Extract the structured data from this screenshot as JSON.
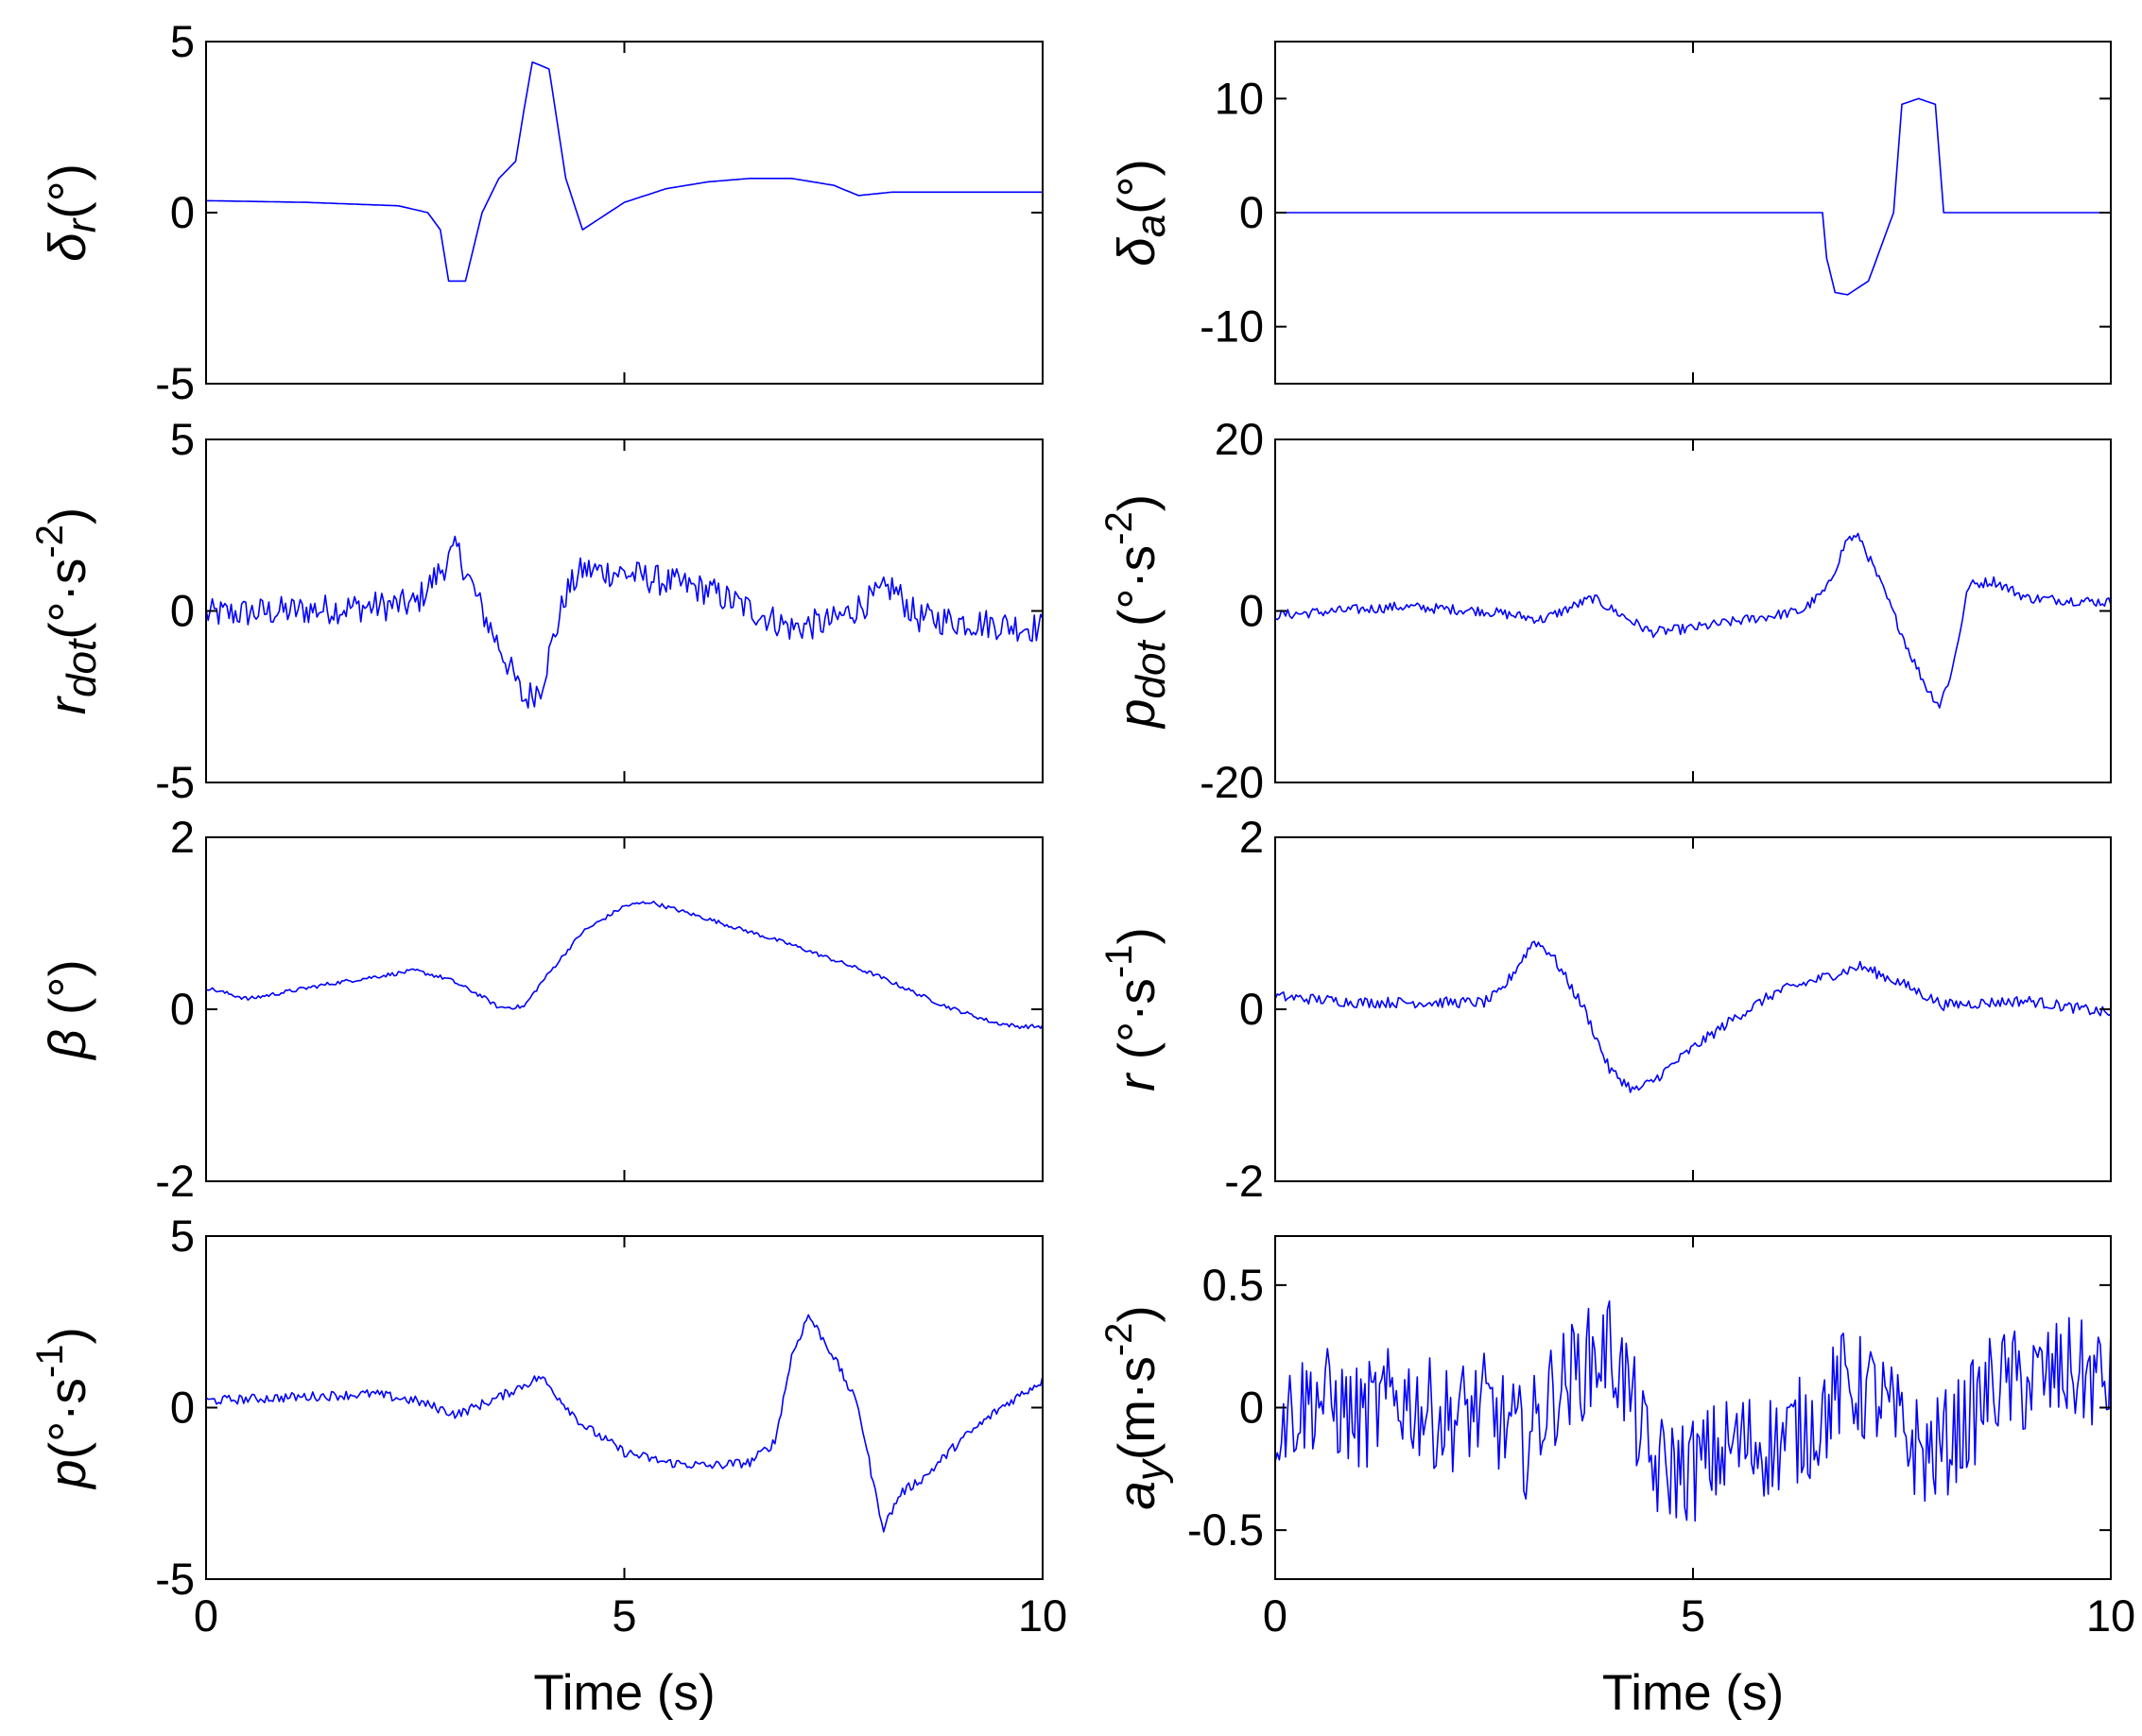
{
  "colors": {
    "line": "#0000ff",
    "axes": "#000000",
    "background": "#ffffff"
  },
  "chart_data": [
    {
      "id": "rudder",
      "type": "line",
      "ylabel": {
        "sym": "δ",
        "sub": "r",
        "unit": "(°)"
      },
      "xlabel": "",
      "xlim": [
        0,
        10
      ],
      "ylim": [
        -5,
        5
      ],
      "xticks": [
        "0",
        "5",
        "10"
      ],
      "yticks": [
        "-5",
        "0",
        "5"
      ],
      "x": [
        0,
        1.2,
        2.3,
        2.65,
        2.8,
        2.9,
        3.1,
        3.3,
        3.5,
        3.7,
        3.8,
        3.9,
        4.1,
        4.3,
        4.5,
        5.0,
        5.5,
        6.0,
        6.5,
        7.0,
        7.5,
        7.8,
        8.2,
        10
      ],
      "series": [
        {
          "name": "δr",
          "values": [
            0.35,
            0.3,
            0.2,
            0.0,
            -0.5,
            -2.0,
            -2.0,
            0.0,
            1.0,
            1.5,
            3.0,
            4.4,
            4.2,
            1.0,
            -0.5,
            0.3,
            0.7,
            0.9,
            1.0,
            1.0,
            0.8,
            0.5,
            0.6,
            0.6
          ]
        }
      ]
    },
    {
      "id": "aileron",
      "type": "line",
      "ylabel": {
        "sym": "δ",
        "sub": "a",
        "unit": "(°)"
      },
      "xlabel": "",
      "xlim": [
        0,
        10
      ],
      "ylim": [
        -15,
        15
      ],
      "xticks": [
        "0",
        "5",
        "10"
      ],
      "yticks": [
        "-10",
        "0",
        "10"
      ],
      "x": [
        0,
        6.55,
        6.6,
        6.7,
        6.85,
        7.1,
        7.3,
        7.4,
        7.5,
        7.7,
        7.9,
        8.0,
        8.05,
        10
      ],
      "series": [
        {
          "name": "δa",
          "values": [
            0,
            0,
            -4,
            -7,
            -7.2,
            -6.0,
            -2.0,
            0.0,
            9.5,
            10.0,
            9.5,
            0.0,
            0.0,
            0.0
          ]
        }
      ]
    },
    {
      "id": "yaw_accel",
      "type": "line",
      "ylabel": {
        "sym": "r",
        "sub": "dot",
        "unit": "(°·s",
        "sup": "-2",
        "tail": ")"
      },
      "xlabel": "",
      "xlim": [
        0,
        10
      ],
      "ylim": [
        -5,
        5
      ],
      "xticks": [
        "0",
        "5",
        "10"
      ],
      "yticks": [
        "-5",
        "0",
        "5"
      ],
      "x": [
        0,
        1.0,
        2.5,
        2.9,
        3.0,
        3.3,
        3.6,
        3.8,
        4.0,
        4.3,
        4.5,
        5.0,
        6.0,
        7.0,
        7.5,
        8.0,
        8.2,
        8.5,
        10
      ],
      "series": [
        {
          "name": "rdot",
          "values": [
            -0.1,
            0.0,
            0.2,
            1.5,
            1.8,
            0.0,
            -1.5,
            -2.6,
            -2.2,
            0.5,
            1.2,
            1.1,
            0.6,
            -0.5,
            -0.3,
            0.4,
            0.7,
            -0.2,
            -0.5
          ]
        }
      ]
    },
    {
      "id": "roll_accel",
      "type": "line",
      "ylabel": {
        "sym": "p",
        "sub": "dot",
        "unit": " (°·s",
        "sup": "-2",
        "tail": ")"
      },
      "xlabel": "",
      "xlim": [
        0,
        10
      ],
      "ylim": [
        -20,
        20
      ],
      "xticks": [
        "0",
        "5",
        "10"
      ],
      "yticks": [
        "-20",
        "0",
        "20"
      ],
      "x": [
        0,
        1.5,
        2.5,
        3.2,
        3.8,
        4.5,
        5.0,
        6.3,
        6.6,
        6.85,
        7.0,
        7.3,
        7.6,
        7.8,
        7.95,
        8.1,
        8.3,
        8.6,
        9.0,
        10
      ],
      "series": [
        {
          "name": "pdot",
          "values": [
            -0.5,
            0.5,
            0.0,
            -1.0,
            1.5,
            -2.5,
            -2.0,
            0.0,
            2.5,
            8.5,
            8.5,
            2.0,
            -5.0,
            -9.0,
            -11.0,
            -7.0,
            3.0,
            3.5,
            1.5,
            1.0
          ]
        }
      ]
    },
    {
      "id": "sideslip",
      "type": "line",
      "ylabel": {
        "sym": "β",
        "sub": "",
        "unit": " (°)"
      },
      "xlabel": "",
      "xlim": [
        0,
        10
      ],
      "ylim": [
        -2,
        2
      ],
      "xticks": [
        "0",
        "5",
        "10"
      ],
      "yticks": [
        "-2",
        "0",
        "2"
      ],
      "x": [
        0,
        0.5,
        1.5,
        2.5,
        2.9,
        3.3,
        3.5,
        3.8,
        4.0,
        4.5,
        5.0,
        5.3,
        6.0,
        7.0,
        8.0,
        8.8,
        9.4,
        9.7,
        10
      ],
      "series": [
        {
          "name": "β",
          "values": [
            0.25,
            0.12,
            0.3,
            0.45,
            0.35,
            0.15,
            0.02,
            0.03,
            0.3,
            0.9,
            1.2,
            1.25,
            1.05,
            0.75,
            0.4,
            0.05,
            -0.15,
            -0.2,
            -0.2
          ]
        }
      ]
    },
    {
      "id": "yaw_rate",
      "type": "line",
      "ylabel": {
        "sym": "r",
        "sub": "",
        "unit": " (°·s",
        "sup": "-1",
        "tail": ")"
      },
      "xlabel": "",
      "xlim": [
        0,
        10
      ],
      "ylim": [
        -2,
        2
      ],
      "xticks": [
        "0",
        "5",
        "10"
      ],
      "yticks": [
        "-2",
        "0",
        "2"
      ],
      "x": [
        0,
        1.0,
        2.5,
        2.7,
        3.1,
        3.3,
        3.7,
        4.0,
        4.3,
        4.5,
        5.0,
        5.5,
        6.0,
        6.5,
        7.0,
        7.5,
        8.0,
        9.0,
        10
      ],
      "series": [
        {
          "name": "r",
          "values": [
            0.15,
            0.08,
            0.08,
            0.2,
            0.8,
            0.65,
            0.0,
            -0.7,
            -0.95,
            -0.85,
            -0.45,
            -0.1,
            0.2,
            0.35,
            0.5,
            0.3,
            0.05,
            0.1,
            -0.05
          ]
        }
      ]
    },
    {
      "id": "roll_rate",
      "type": "line",
      "ylabel": {
        "sym": "p",
        "sub": "",
        "unit": "(°·s",
        "sup": "-1",
        "tail": ")"
      },
      "xlabel": "Time (s)",
      "xlim": [
        0,
        10
      ],
      "ylim": [
        -5,
        5
      ],
      "xticks": [
        "0",
        "5",
        "10"
      ],
      "yticks": [
        "-5",
        "0",
        "5"
      ],
      "x": [
        0,
        1.0,
        2.0,
        2.5,
        3.0,
        3.5,
        4.0,
        4.5,
        5.0,
        5.5,
        6.0,
        6.5,
        6.8,
        7.0,
        7.2,
        7.5,
        7.8,
        8.0,
        8.1,
        8.3,
        8.6,
        9.0,
        9.5,
        10
      ],
      "series": [
        {
          "name": "p",
          "values": [
            0.2,
            0.3,
            0.4,
            0.2,
            -0.2,
            0.3,
            0.9,
            -0.5,
            -1.3,
            -1.6,
            -1.7,
            -1.6,
            -1.0,
            1.5,
            2.7,
            1.5,
            0.0,
            -2.5,
            -3.5,
            -2.5,
            -2.0,
            -1.0,
            0.0,
            0.8
          ]
        }
      ]
    },
    {
      "id": "lateral_accel",
      "type": "line",
      "ylabel": {
        "sym": "a",
        "sub": "y",
        "unit": "(m·s",
        "sup": "-2",
        "tail": ")"
      },
      "xlabel": "Time (s)",
      "xlim": [
        0,
        10
      ],
      "ylim": [
        -0.7,
        0.7
      ],
      "xticks": [
        "0",
        "5",
        "10"
      ],
      "yticks": [
        "-0.5",
        "0",
        "0.5"
      ],
      "x": [
        0,
        0.5,
        1.0,
        1.5,
        2.0,
        2.5,
        3.0,
        3.3,
        3.6,
        4.0,
        4.2,
        4.5,
        5.0,
        5.5,
        6.0,
        6.5,
        6.8,
        7.2,
        7.5,
        7.8,
        8.0,
        8.3,
        8.6,
        9.0,
        9.5,
        10
      ],
      "series": [
        {
          "name": "ay",
          "values": [
            -0.05,
            0.05,
            -0.05,
            0.05,
            -0.05,
            0.0,
            -0.15,
            0.05,
            0.15,
            0.25,
            0.1,
            -0.25,
            -0.25,
            -0.15,
            -0.15,
            -0.05,
            0.1,
            0.05,
            -0.1,
            -0.2,
            -0.15,
            -0.05,
            0.1,
            0.1,
            0.15,
            0.1
          ]
        }
      ]
    }
  ]
}
